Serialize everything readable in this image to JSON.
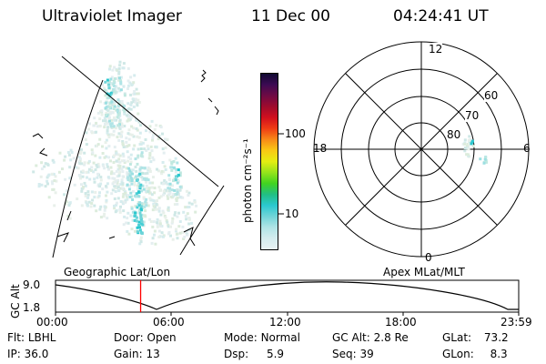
{
  "header": {
    "instrument": "Ultraviolet Imager",
    "date": "11 Dec 00",
    "time": "04:24:41 UT"
  },
  "colorbar": {
    "units_label": "photon cm⁻²s⁻¹",
    "ticks": [
      "100",
      "10"
    ],
    "log_scale": true,
    "colors": [
      "#e9f2f3",
      "#d4ecee",
      "#b0e4e6",
      "#70d4d8",
      "#2bc8cf",
      "#21bf83",
      "#41d320",
      "#96e41b",
      "#e5ee12",
      "#f9c914",
      "#f88a18",
      "#ef3d15",
      "#d1101e",
      "#9e0b2d",
      "#6f0a44",
      "#3c0a53",
      "#100a32"
    ]
  },
  "left_panel": {
    "label": "Geographic Lat/Lon"
  },
  "polar_plot": {
    "label": "Apex MLat/MLT",
    "mlt_labels": [
      "12",
      "6",
      "0",
      "18"
    ],
    "lat_labels": [
      "60",
      "70",
      "80"
    ]
  },
  "timeline": {
    "y_axis_label": "GC Alt",
    "y_ticks": [
      "9.0",
      "1.8"
    ],
    "x_ticks": [
      "00:00",
      "06:00",
      "12:00",
      "18:00",
      "23:59"
    ],
    "current_time_hours": 4.41,
    "marker_color": "#ff0000"
  },
  "info": {
    "flt_label": "Flt:",
    "flt_value": "LBHL",
    "ip_label": "IP:",
    "ip_value": "36.0",
    "door_label": "Door:",
    "door_value": "Open",
    "gain_label": "Gain:",
    "gain_value": "13",
    "mode_label": "Mode:",
    "mode_value": "Normal",
    "dsp_label": "Dsp:",
    "dsp_value": "5.9",
    "gcalt_label": "GC Alt:",
    "gcalt_value": "2.8 Re",
    "seq_label": "Seq:",
    "seq_value": "39",
    "glat_label": "GLat:",
    "glat_value": "73.2",
    "glon_label": "GLon:",
    "glon_value": "8.3"
  }
}
